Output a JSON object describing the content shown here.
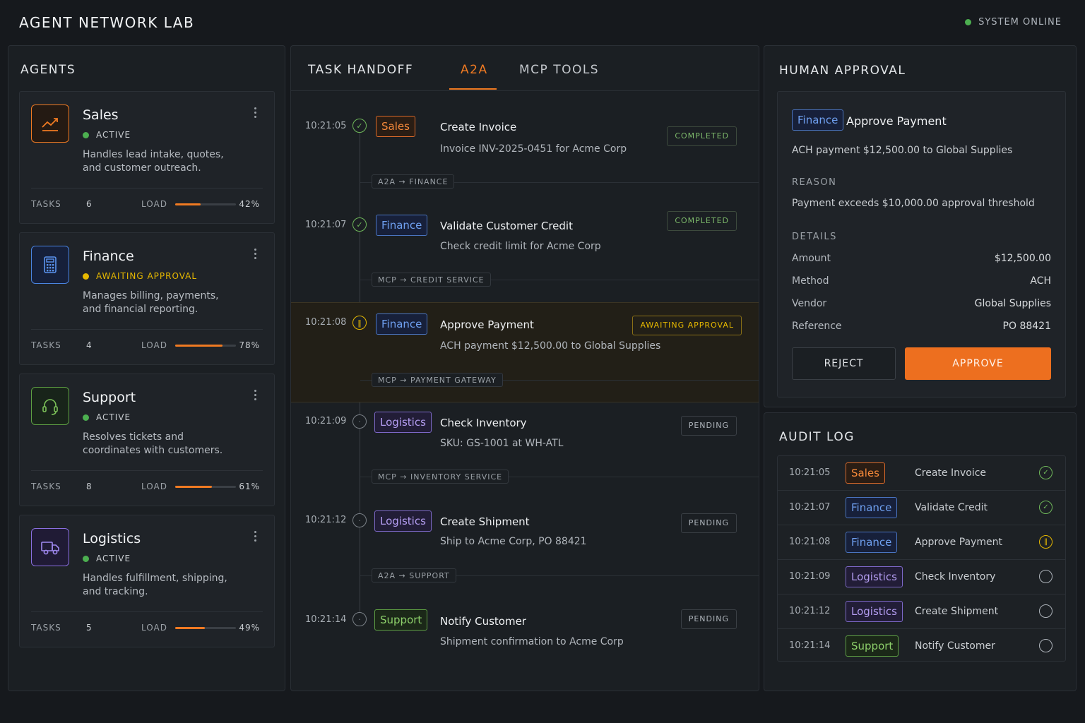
{
  "app": {
    "title": "AGENT NETWORK LAB",
    "system_status": "SYSTEM ONLINE"
  },
  "agents": {
    "title": "AGENTS",
    "items": [
      {
        "name": "Sales",
        "status": "ACTIVE",
        "status_color": "#4caf50",
        "desc": "Handles lead intake, quotes, and customer outreach.",
        "tasks_label": "TASKS",
        "tasks": "6",
        "load_label": "LOAD",
        "load": "42%",
        "load_fraction": 0.42,
        "icon": "trending-chart-icon",
        "accent": "#f07a22"
      },
      {
        "name": "Finance",
        "status": "AWAITING APPROVAL",
        "status_color": "#e6b800",
        "desc": "Manages billing, payments, and financial reporting.",
        "tasks_label": "TASKS",
        "tasks": "4",
        "load_label": "LOAD",
        "load": "78%",
        "load_fraction": 0.78,
        "icon": "calculator-icon",
        "accent": "#4a84e0"
      },
      {
        "name": "Support",
        "status": "ACTIVE",
        "status_color": "#4caf50",
        "desc": "Resolves tickets and coordinates with customers.",
        "tasks_label": "TASKS",
        "tasks": "8",
        "load_label": "LOAD",
        "load": "61%",
        "load_fraction": 0.61,
        "icon": "headset-icon",
        "accent": "#5ea043"
      },
      {
        "name": "Logistics",
        "status": "ACTIVE",
        "status_color": "#4caf50",
        "desc": "Handles fulfillment, shipping, and tracking.",
        "tasks_label": "TASKS",
        "tasks": "5",
        "load_label": "LOAD",
        "load": "49%",
        "load_fraction": 0.49,
        "icon": "truck-icon",
        "accent": "#8a6fe0"
      }
    ]
  },
  "handoff": {
    "title": "TASK HANDOFF",
    "tabs": [
      "A2A",
      "MCP TOOLS"
    ],
    "active_tab": "A2A",
    "steps": [
      {
        "time": "10:21:05",
        "agent": "Sales",
        "title": "Create Invoice",
        "sub": "Invoice INV-2025-0451 for Acme Corp",
        "status": "COMPLETED",
        "route": "A2A → FINANCE"
      },
      {
        "time": "10:21:07",
        "agent": "Finance",
        "title": "Validate Customer Credit",
        "sub": "Check credit limit for Acme Corp",
        "status": "COMPLETED",
        "route": "MCP → CREDIT SERVICE"
      },
      {
        "time": "10:21:08",
        "agent": "Finance",
        "title": "Approve Payment",
        "sub": "ACH payment $12,500.00 to Global Supplies",
        "status": "AWAITING APPROVAL",
        "route": "MCP → PAYMENT GATEWAY"
      },
      {
        "time": "10:21:09",
        "agent": "Logistics",
        "title": "Check Inventory",
        "sub": "SKU: GS-1001 at WH-ATL",
        "status": "PENDING",
        "route": "MCP → INVENTORY SERVICE"
      },
      {
        "time": "10:21:12",
        "agent": "Logistics",
        "title": "Create Shipment",
        "sub": "Ship to Acme Corp, PO 88421",
        "status": "PENDING",
        "route": "A2A → SUPPORT"
      },
      {
        "time": "10:21:14",
        "agent": "Support",
        "title": "Notify Customer",
        "sub": "Shipment confirmation to Acme Corp",
        "status": "PENDING",
        "route": ""
      }
    ]
  },
  "approval": {
    "title": "HUMAN APPROVAL",
    "agent": "Finance",
    "action": "Approve Payment",
    "summary": "ACH payment $12,500.00 to Global Supplies",
    "reason_label": "REASON",
    "reason": "Payment exceeds $10,000.00 approval threshold",
    "details_label": "DETAILS",
    "details": [
      {
        "k": "Amount",
        "v": "$12,500.00"
      },
      {
        "k": "Method",
        "v": "ACH"
      },
      {
        "k": "Vendor",
        "v": "Global Supplies"
      },
      {
        "k": "Reference",
        "v": "PO 88421"
      }
    ],
    "reject_label": "REJECT",
    "approve_label": "APPROVE"
  },
  "audit": {
    "title": "AUDIT LOG",
    "rows": [
      {
        "time": "10:21:05",
        "agent": "Sales",
        "action": "Create Invoice",
        "state": "done"
      },
      {
        "time": "10:21:07",
        "agent": "Finance",
        "action": "Validate Credit",
        "state": "done"
      },
      {
        "time": "10:21:08",
        "agent": "Finance",
        "action": "Approve Payment",
        "state": "paused"
      },
      {
        "time": "10:21:09",
        "agent": "Logistics",
        "action": "Check Inventory",
        "state": "pending"
      },
      {
        "time": "10:21:12",
        "agent": "Logistics",
        "action": "Create Shipment",
        "state": "pending"
      },
      {
        "time": "10:21:14",
        "agent": "Support",
        "action": "Notify Customer",
        "state": "pending"
      }
    ]
  }
}
